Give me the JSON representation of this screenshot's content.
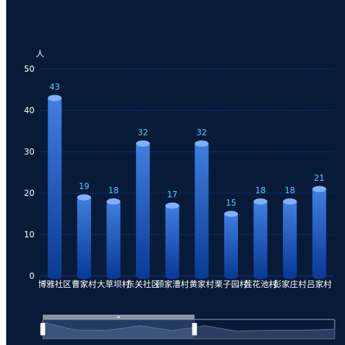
{
  "chart_data": {
    "type": "bar",
    "ylabel": "人",
    "ylim": [
      0,
      50
    ],
    "yticks": [
      0,
      10,
      20,
      30,
      40,
      50
    ],
    "grid": true,
    "categories": [
      "博雅社区",
      "曹家村",
      "大草坝村",
      "东关社区",
      "顾家漕村",
      "黄家村",
      "栗子园村",
      "莲花池村",
      "彭家庄村",
      "吕家村"
    ],
    "values": [
      43,
      19,
      18,
      32,
      17,
      32,
      15,
      18,
      18,
      21
    ]
  },
  "datazoom": {
    "handle_label": "≡",
    "selection": [
      0,
      0.52
    ]
  },
  "colors": {
    "background": "#071a38",
    "grid": "#1a3a8a",
    "bar_top": "#3f7ee0",
    "bar_bottom": "#0a3b97",
    "bar_cap": "#7fb0ff",
    "value_label": "#4fd0ff",
    "axis_text": "#ffffff"
  }
}
